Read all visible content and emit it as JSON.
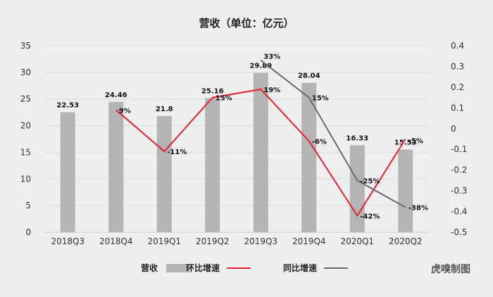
{
  "chart_data": {
    "type": "bar+line",
    "title": "营收（单位：亿元）",
    "categories": [
      "2018Q3",
      "2018Q4",
      "2019Q1",
      "2019Q2",
      "2019Q3",
      "2019Q4",
      "2020Q1",
      "2020Q2"
    ],
    "bar_series": {
      "name": "营收",
      "values": [
        22.53,
        24.46,
        21.8,
        25.16,
        29.89,
        28.04,
        16.33,
        15.53
      ],
      "labels": [
        "22.53",
        "24.46",
        "21.8",
        "25.16",
        "29.89",
        "28.04",
        "16.33",
        "15.53"
      ],
      "color": "#b4b4b4"
    },
    "line_series": [
      {
        "name": "环比增速",
        "color": "#e8212e",
        "values": [
          null,
          0.09,
          -0.11,
          0.15,
          0.19,
          -0.06,
          -0.42,
          -0.05
        ],
        "labels": [
          null,
          "9%",
          "-11%",
          "15%",
          "19%",
          "-6%",
          "-42%",
          "-5%"
        ]
      },
      {
        "name": "同比增速",
        "color": "#6b6b6b",
        "values": [
          null,
          null,
          null,
          null,
          0.33,
          0.15,
          -0.25,
          -0.38
        ],
        "labels": [
          null,
          null,
          null,
          null,
          "33%",
          "15%",
          "-25%",
          "-38%"
        ]
      }
    ],
    "y_left": {
      "min": 0,
      "max": 35,
      "ticks": [
        "0",
        "5",
        "10",
        "15",
        "20",
        "25",
        "30",
        "35"
      ]
    },
    "y_right": {
      "min": -0.5,
      "max": 0.4,
      "ticks": [
        "-0.5",
        "-0.4",
        "-0.3",
        "-0.2",
        "-0.1",
        "0",
        "0.1",
        "0.2",
        "0.3",
        "0.4"
      ]
    },
    "grid": true,
    "legend_position": "bottom"
  },
  "brand": "虎嗅制图"
}
